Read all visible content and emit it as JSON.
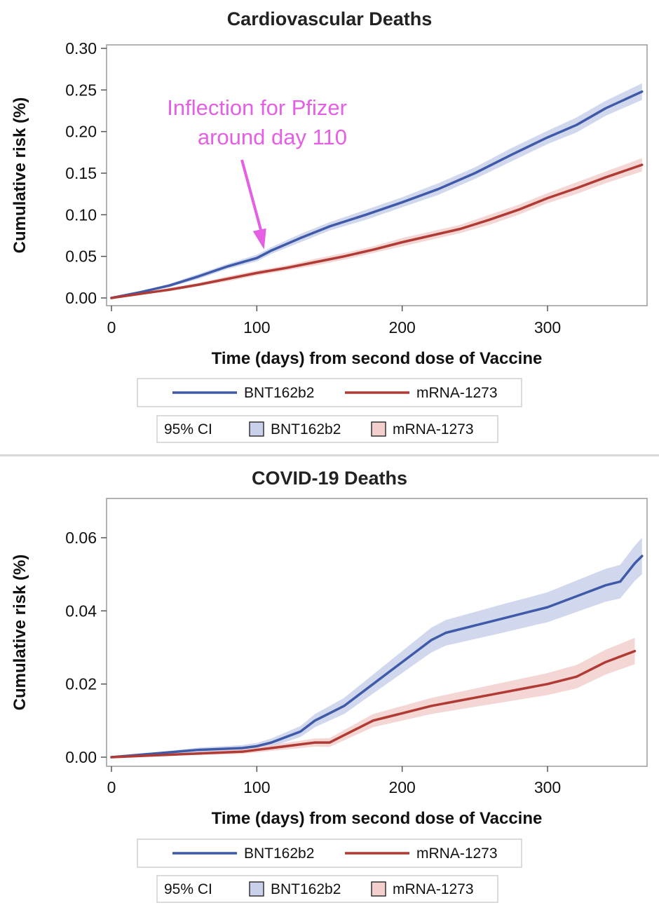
{
  "chart_data": [
    {
      "type": "line",
      "title": "Cardiovascular Deaths",
      "xlabel": "Time (days) from second dose of Vaccine",
      "ylabel": "Cumulative risk (%)",
      "xlim": [
        0,
        365
      ],
      "ylim": [
        0,
        0.3
      ],
      "xticks": [
        0,
        100,
        200,
        300
      ],
      "yticks": [
        0.0,
        0.05,
        0.1,
        0.15,
        0.2,
        0.25,
        0.3
      ],
      "ytick_labels": [
        "0.00",
        "0.05",
        "0.10",
        "0.15",
        "0.20",
        "0.25",
        "0.30"
      ],
      "grid": false,
      "legend_lines": [
        "BNT162b2",
        "mRNA-1273"
      ],
      "legend_ci_label": "95% CI",
      "legend_ci": [
        "BNT162b2",
        "mRNA-1273"
      ],
      "legend_position": "bottom",
      "annotation": {
        "lines": [
          "Inflection for Pfizer",
          "around day 110"
        ],
        "arrow_to": [
          105,
          0.055
        ],
        "color": "#e45fe3"
      },
      "series": [
        {
          "name": "BNT162b2",
          "color": "#3f5aa8",
          "ci_color": "#c9d1ea",
          "x": [
            0,
            20,
            40,
            60,
            80,
            100,
            110,
            130,
            150,
            175,
            200,
            225,
            250,
            275,
            300,
            320,
            340,
            365
          ],
          "y": [
            0,
            0.007,
            0.015,
            0.026,
            0.038,
            0.048,
            0.057,
            0.072,
            0.086,
            0.1,
            0.115,
            0.131,
            0.15,
            0.172,
            0.193,
            0.208,
            0.228,
            0.248
          ],
          "ci_halfwidth": [
            0,
            0.001,
            0.002,
            0.003,
            0.003,
            0.004,
            0.004,
            0.005,
            0.005,
            0.006,
            0.006,
            0.007,
            0.007,
            0.008,
            0.008,
            0.009,
            0.009,
            0.01
          ]
        },
        {
          "name": "mRNA-1273",
          "color": "#b03a34",
          "ci_color": "#f2cfcc",
          "x": [
            0,
            20,
            40,
            60,
            80,
            100,
            120,
            140,
            160,
            180,
            200,
            220,
            240,
            260,
            280,
            300,
            320,
            340,
            365
          ],
          "y": [
            0,
            0.005,
            0.01,
            0.016,
            0.023,
            0.03,
            0.036,
            0.043,
            0.05,
            0.058,
            0.067,
            0.075,
            0.083,
            0.094,
            0.106,
            0.12,
            0.132,
            0.145,
            0.16
          ],
          "ci_halfwidth": [
            0,
            0.001,
            0.002,
            0.002,
            0.003,
            0.003,
            0.003,
            0.004,
            0.004,
            0.004,
            0.005,
            0.005,
            0.005,
            0.006,
            0.006,
            0.006,
            0.007,
            0.007,
            0.008
          ]
        }
      ]
    },
    {
      "type": "line",
      "title": "COVID-19 Deaths",
      "xlabel": "Time (days) from second dose of Vaccine",
      "ylabel": "Cumulative risk (%)",
      "xlim": [
        0,
        365
      ],
      "ylim": [
        0,
        0.07
      ],
      "xticks": [
        0,
        100,
        200,
        300
      ],
      "yticks": [
        0.0,
        0.02,
        0.04,
        0.06
      ],
      "ytick_labels": [
        "0.00",
        "0.02",
        "0.04",
        "0.06"
      ],
      "grid": false,
      "legend_lines": [
        "BNT162b2",
        "mRNA-1273"
      ],
      "legend_ci_label": "95% CI",
      "legend_ci": [
        "BNT162b2",
        "mRNA-1273"
      ],
      "legend_position": "bottom",
      "series": [
        {
          "name": "BNT162b2",
          "color": "#3f5aa8",
          "ci_color": "#c9d1ea",
          "x": [
            0,
            30,
            60,
            90,
            100,
            110,
            120,
            130,
            140,
            150,
            160,
            170,
            180,
            190,
            200,
            210,
            220,
            230,
            250,
            270,
            290,
            300,
            320,
            340,
            350,
            360,
            365
          ],
          "y": [
            0,
            0.001,
            0.002,
            0.0025,
            0.003,
            0.004,
            0.0055,
            0.007,
            0.01,
            0.012,
            0.014,
            0.017,
            0.02,
            0.023,
            0.026,
            0.029,
            0.032,
            0.034,
            0.036,
            0.038,
            0.04,
            0.041,
            0.044,
            0.047,
            0.048,
            0.053,
            0.055
          ],
          "ci_halfwidth": [
            0,
            0.0003,
            0.0006,
            0.0008,
            0.0009,
            0.0011,
            0.0013,
            0.0015,
            0.0018,
            0.002,
            0.0022,
            0.0024,
            0.0026,
            0.0028,
            0.003,
            0.0032,
            0.0034,
            0.0035,
            0.0037,
            0.0039,
            0.004,
            0.0041,
            0.0043,
            0.0045,
            0.0046,
            0.0048,
            0.005
          ]
        },
        {
          "name": "mRNA-1273",
          "color": "#b03a34",
          "ci_color": "#f2cfcc",
          "x": [
            0,
            30,
            60,
            90,
            100,
            110,
            120,
            130,
            140,
            150,
            160,
            170,
            180,
            190,
            200,
            220,
            240,
            260,
            280,
            300,
            320,
            340,
            360
          ],
          "y": [
            0,
            0.0005,
            0.001,
            0.0015,
            0.002,
            0.0025,
            0.003,
            0.0035,
            0.004,
            0.004,
            0.006,
            0.008,
            0.01,
            0.011,
            0.012,
            0.014,
            0.0155,
            0.017,
            0.0185,
            0.02,
            0.022,
            0.026,
            0.029
          ],
          "ci_halfwidth": [
            0,
            0.0002,
            0.0004,
            0.0006,
            0.0007,
            0.0008,
            0.0009,
            0.001,
            0.0011,
            0.0012,
            0.0014,
            0.0016,
            0.0018,
            0.0019,
            0.002,
            0.0022,
            0.0024,
            0.0026,
            0.0028,
            0.003,
            0.0032,
            0.0034,
            0.0036
          ]
        }
      ]
    }
  ]
}
